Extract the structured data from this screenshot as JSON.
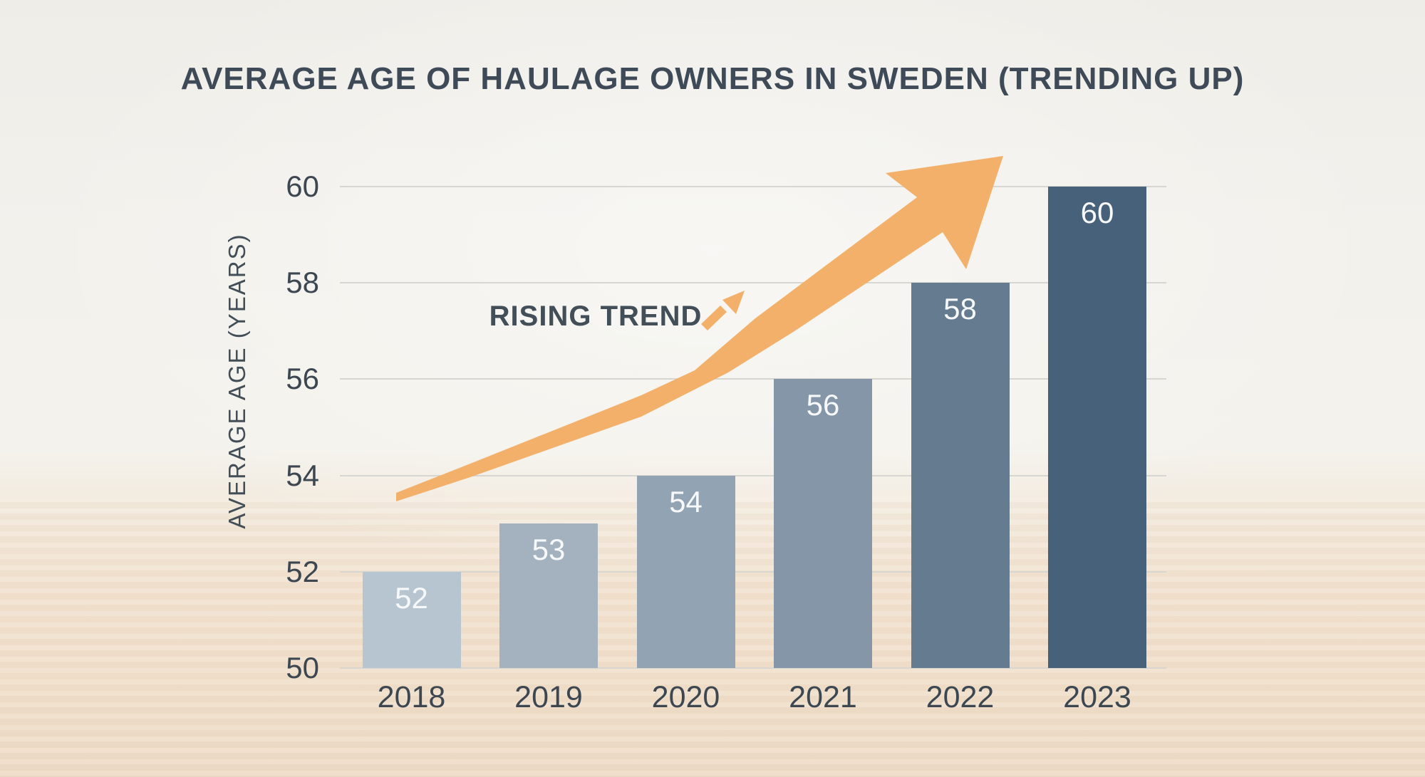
{
  "title": "AVERAGE AGE OF HAULAGE OWNERS IN SWEDEN (TRENDING UP)",
  "annotation": {
    "label": "RISING TREND"
  },
  "y_axis_title": "AVERAGE AGE (YEARS)",
  "chart_data": {
    "type": "bar",
    "title": "AVERAGE AGE OF HAULAGE OWNERS IN SWEDEN (TRENDING UP)",
    "categories": [
      "2018",
      "2019",
      "2020",
      "2021",
      "2022",
      "2023"
    ],
    "values": [
      52,
      53,
      54,
      56,
      58,
      60
    ],
    "bar_labels": [
      "52",
      "53",
      "54",
      "56",
      "58",
      "60"
    ],
    "xlabel": "",
    "ylabel": "AVERAGE AGE (YEARS)",
    "ylim": [
      50,
      60
    ],
    "yticks": [
      50,
      52,
      54,
      56,
      58,
      60
    ],
    "grid": true,
    "legend_position": "none",
    "annotations": [
      {
        "text": "RISING TREND",
        "type": "trend-arrow-up"
      }
    ],
    "bar_colors": [
      "#b7c5d0",
      "#a3b2be",
      "#92a3b3",
      "#8496a8",
      "#647b90",
      "#48617a"
    ],
    "arrow_color": "#f3b06b"
  },
  "colors": {
    "background_top": "#f3f1ec",
    "background_table": "#f1e1cf",
    "gridline": "#d8d6d1",
    "tick_text": "#3c4751",
    "title_text": "#3e4a57",
    "value_label_text": "#f7f8f9"
  }
}
